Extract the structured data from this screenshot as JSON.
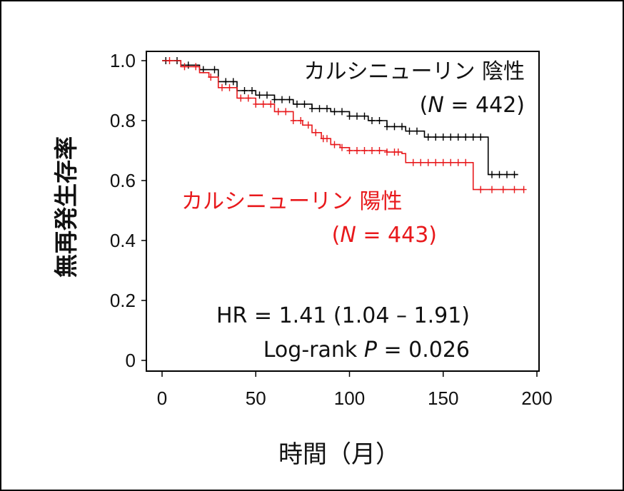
{
  "chart_data": {
    "type": "line",
    "subtype": "kaplan-meier",
    "xlabel": "時間（月）",
    "ylabel": "無再発生存率",
    "xlim": [
      0,
      200
    ],
    "ylim": [
      0,
      1.0
    ],
    "xticks": [
      0,
      50,
      100,
      150,
      200
    ],
    "xtick_labels": [
      "0",
      "50",
      "100",
      "150",
      "200"
    ],
    "yticks": [
      0,
      0.2,
      0.4,
      0.6,
      0.8,
      1.0
    ],
    "ytick_labels": [
      "0",
      "0.2",
      "0.4",
      "0.6",
      "0.8",
      "1.0"
    ],
    "grid": false,
    "series": [
      {
        "name": "カルシニューリン 陰性",
        "n_label": "(N = 442)",
        "color": "#000000",
        "x": [
          0,
          10,
          20,
          30,
          40,
          50,
          60,
          70,
          80,
          90,
          100,
          110,
          120,
          130,
          140,
          150,
          160,
          172,
          174,
          185,
          190
        ],
        "y": [
          1.0,
          0.985,
          0.97,
          0.93,
          0.9,
          0.885,
          0.87,
          0.855,
          0.84,
          0.83,
          0.815,
          0.8,
          0.78,
          0.765,
          0.745,
          0.745,
          0.745,
          0.745,
          0.62,
          0.62,
          0.62
        ],
        "censor_x": [
          2,
          8,
          14,
          22,
          28,
          34,
          38,
          44,
          48,
          52,
          56,
          60,
          64,
          68,
          72,
          76,
          80,
          84,
          88,
          92,
          96,
          100,
          104,
          108,
          112,
          116,
          120,
          124,
          128,
          132,
          136,
          142,
          146,
          150,
          154,
          158,
          162,
          166,
          170,
          176,
          180,
          184,
          188
        ]
      },
      {
        "name": "カルシニューリン 陽性",
        "n_label": "(N = 443)",
        "color": "#e8191c",
        "x": [
          0,
          10,
          20,
          25,
          30,
          40,
          50,
          60,
          70,
          75,
          80,
          85,
          90,
          95,
          100,
          110,
          120,
          128,
          130,
          140,
          150,
          160,
          165,
          166,
          180,
          193
        ],
        "y": [
          1.0,
          0.98,
          0.96,
          0.945,
          0.91,
          0.875,
          0.855,
          0.83,
          0.8,
          0.785,
          0.76,
          0.74,
          0.72,
          0.71,
          0.7,
          0.7,
          0.695,
          0.69,
          0.66,
          0.66,
          0.66,
          0.66,
          0.66,
          0.57,
          0.57,
          0.57
        ],
        "censor_x": [
          4,
          12,
          18,
          26,
          32,
          36,
          42,
          46,
          50,
          54,
          58,
          62,
          66,
          70,
          74,
          78,
          82,
          86,
          88,
          92,
          96,
          100,
          104,
          108,
          112,
          116,
          120,
          124,
          126,
          134,
          138,
          142,
          146,
          150,
          154,
          158,
          162,
          170,
          176,
          182,
          188,
          193
        ]
      }
    ],
    "annotations": {
      "negative_label": "カルシニューリン 陰性",
      "negative_n": "(N = 442)",
      "positive_label": "カルシニューリン 陽性",
      "positive_n": "(N = 443)",
      "hr_text": "HR = 1.41 (1.04 – 1.91)",
      "logrank_prefix": "Log-rank ",
      "logrank_p": "P",
      "logrank_value": " = 0.026"
    }
  }
}
